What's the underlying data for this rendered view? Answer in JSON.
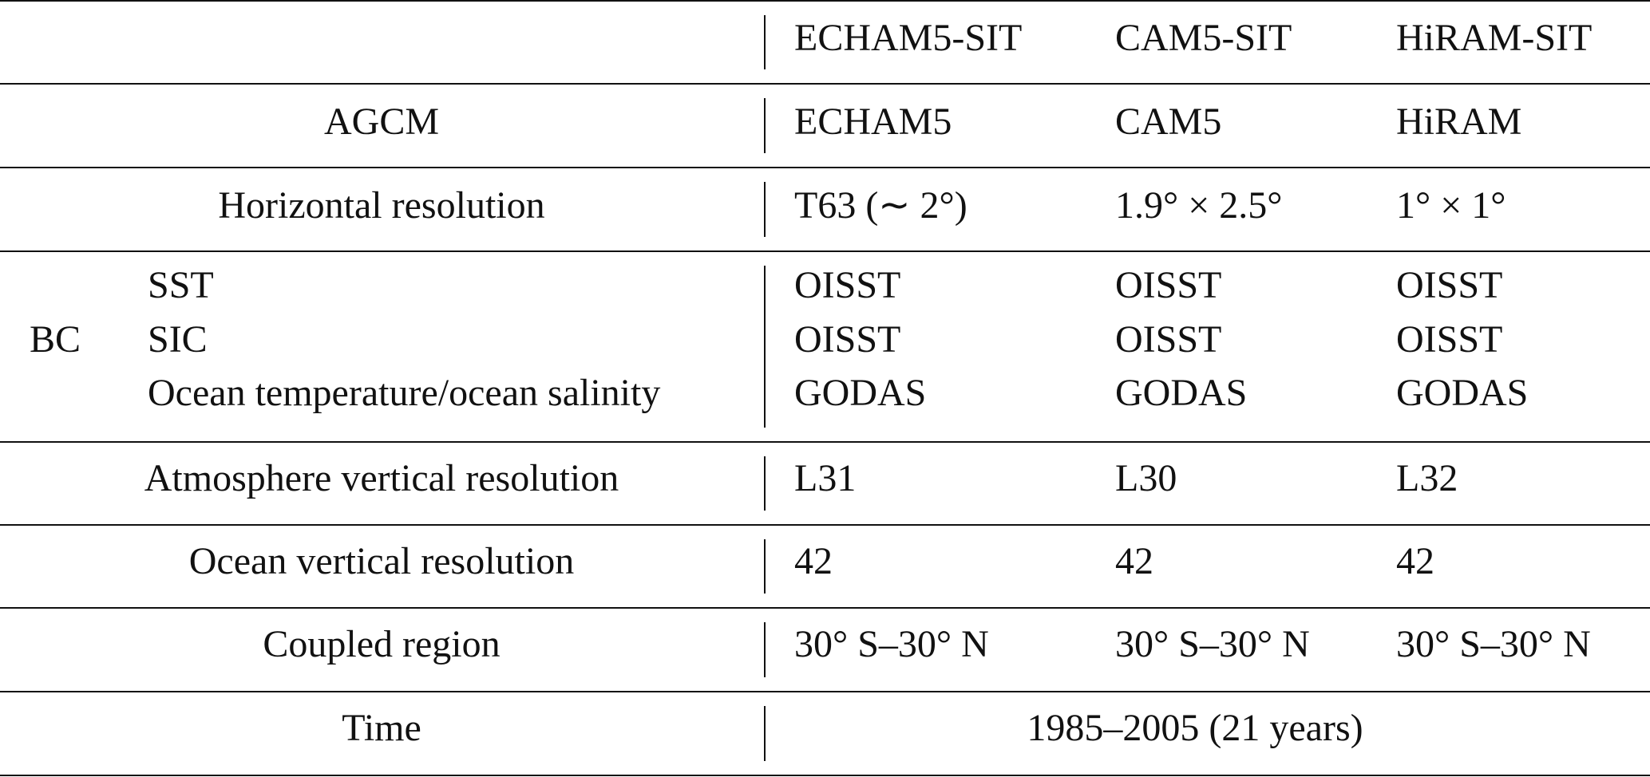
{
  "table": {
    "columns": [
      "ECHAM5-SIT",
      "CAM5-SIT",
      "HiRAM-SIT"
    ],
    "rows": [
      {
        "label": "AGCM",
        "values": [
          "ECHAM5",
          "CAM5",
          "HiRAM"
        ]
      },
      {
        "label": "Horizontal resolution",
        "values": [
          "T63 (∼ 2°)",
          "1.9° × 2.5°",
          "1° × 1°"
        ]
      },
      {
        "group": "BC",
        "label": "SST",
        "values": [
          "OISST",
          "OISST",
          "OISST"
        ]
      },
      {
        "label": "SIC",
        "values": [
          "OISST",
          "OISST",
          "OISST"
        ]
      },
      {
        "label": "Ocean temperature/ocean salinity",
        "values": [
          "GODAS",
          "GODAS",
          "GODAS"
        ]
      },
      {
        "label": "Atmosphere vertical resolution",
        "values": [
          "L31",
          "L30",
          "L32"
        ]
      },
      {
        "label": "Ocean vertical resolution",
        "values": [
          "42",
          "42",
          "42"
        ]
      },
      {
        "label": "Coupled region",
        "values": [
          "30° S–30° N",
          "30° S–30° N",
          "30° S–30° N"
        ]
      },
      {
        "label": "Time",
        "value": "1985–2005 (21 years)"
      }
    ]
  }
}
